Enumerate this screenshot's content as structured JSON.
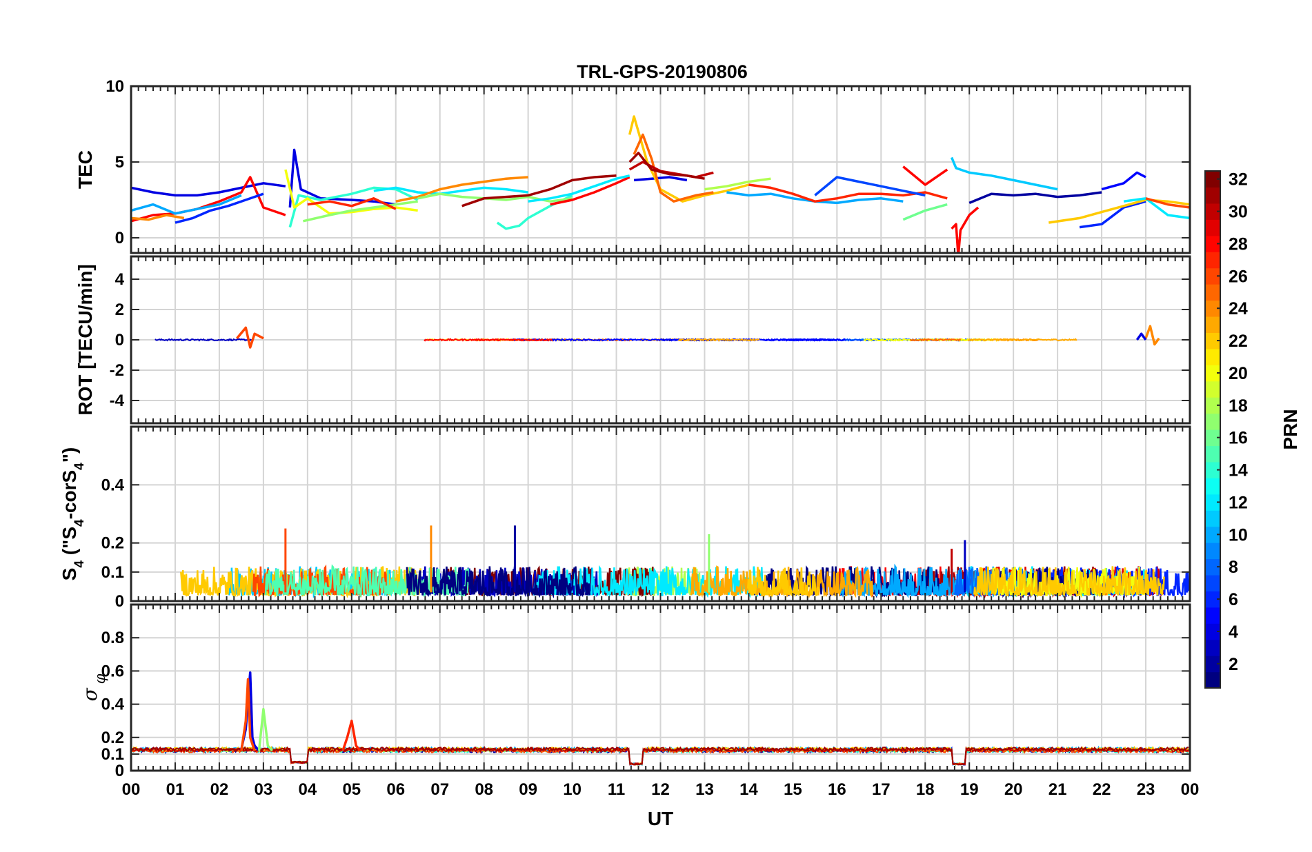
{
  "chart_data": [
    {
      "panel": "tec",
      "type": "line",
      "title": "TRL-GPS-20190806",
      "ylabel": "TEC",
      "xlabel": "",
      "xlim": [
        0,
        24
      ],
      "ylim": [
        -1,
        10
      ],
      "yticks": [
        0,
        5,
        10
      ],
      "grid": true,
      "series": [
        {
          "prn": 4,
          "x": [
            0.0,
            0.5,
            1.0,
            1.5,
            2.0,
            2.5,
            3.0,
            3.5
          ],
          "y": [
            3.3,
            3.0,
            2.8,
            2.8,
            3.0,
            3.3,
            3.6,
            3.4
          ]
        },
        {
          "prn": 28,
          "x": [
            0.0,
            0.5,
            1.0,
            1.5,
            2.0,
            2.5,
            2.7,
            3.0,
            3.5
          ],
          "y": [
            1.1,
            1.5,
            1.6,
            1.9,
            2.4,
            3.0,
            4.0,
            2.0,
            1.5
          ]
        },
        {
          "prn": 24,
          "x": [
            0.0,
            0.4,
            0.8,
            1.2
          ],
          "y": [
            1.3,
            1.2,
            1.5,
            1.3
          ]
        },
        {
          "prn": 10,
          "x": [
            0.0,
            0.5,
            1.0,
            1.5,
            2.0,
            2.5
          ],
          "y": [
            1.8,
            2.2,
            1.6,
            1.9,
            2.2,
            2.8
          ]
        },
        {
          "prn": 6,
          "x": [
            1.0,
            1.4,
            1.8,
            2.2,
            2.6,
            3.0
          ],
          "y": [
            1.0,
            1.3,
            1.8,
            2.1,
            2.5,
            2.9
          ]
        },
        {
          "prn": 4,
          "x": [
            3.6,
            3.7,
            3.85,
            4.3,
            5.0,
            5.5,
            6.0
          ],
          "y": [
            2.0,
            5.8,
            3.2,
            2.6,
            2.5,
            2.4,
            2.2
          ]
        },
        {
          "prn": 14,
          "x": [
            3.6,
            3.8,
            4.3,
            5.0,
            5.5,
            6.0,
            6.5
          ],
          "y": [
            0.7,
            2.8,
            2.5,
            2.9,
            3.3,
            3.2,
            2.5
          ]
        },
        {
          "prn": 20,
          "x": [
            3.5,
            3.7,
            4.0,
            4.5,
            5.0,
            5.5,
            6.0,
            6.5
          ],
          "y": [
            4.5,
            2.0,
            2.6,
            1.6,
            1.7,
            1.9,
            2.0,
            1.8
          ]
        },
        {
          "prn": 17,
          "x": [
            3.9,
            4.5,
            5.0,
            5.5,
            6.0,
            6.5
          ],
          "y": [
            1.1,
            1.5,
            1.8,
            2.0,
            2.2,
            2.4
          ]
        },
        {
          "prn": 27,
          "x": [
            4.0,
            4.5,
            5.0,
            5.5,
            6.0
          ],
          "y": [
            2.2,
            2.4,
            2.1,
            2.6,
            1.9
          ]
        },
        {
          "prn": 12,
          "x": [
            5.5,
            6.0,
            6.5,
            7.0,
            7.5,
            8.0,
            8.5,
            9.0
          ],
          "y": [
            3.1,
            3.3,
            3.0,
            2.9,
            3.1,
            3.3,
            3.2,
            3.0
          ]
        },
        {
          "prn": 24,
          "x": [
            6.0,
            6.5,
            7.0,
            7.5,
            8.0,
            8.5,
            9.0
          ],
          "y": [
            2.4,
            2.7,
            3.2,
            3.5,
            3.7,
            3.9,
            4.0
          ]
        },
        {
          "prn": 14,
          "x": [
            8.3,
            8.5,
            8.8,
            9.0,
            9.5,
            10.0
          ],
          "y": [
            1.0,
            0.6,
            0.8,
            1.3,
            2.1,
            2.8
          ]
        },
        {
          "prn": 17,
          "x": [
            6.5,
            7.0,
            7.5,
            8.0,
            8.5,
            9.0,
            9.5,
            10.0
          ],
          "y": [
            2.6,
            2.9,
            2.7,
            2.6,
            2.5,
            2.7,
            2.4,
            2.6
          ]
        },
        {
          "prn": 31,
          "x": [
            7.5,
            8.0,
            8.5,
            9.0,
            9.5,
            10.0,
            10.5,
            11.0
          ],
          "y": [
            2.1,
            2.6,
            2.7,
            2.8,
            3.2,
            3.8,
            4.0,
            4.1
          ]
        },
        {
          "prn": 28,
          "x": [
            9.5,
            10.0,
            10.5,
            11.0,
            11.3
          ],
          "y": [
            2.2,
            2.5,
            3.0,
            3.6,
            4.0
          ]
        },
        {
          "prn": 12,
          "x": [
            9.0,
            9.5,
            10.0,
            10.5,
            11.0,
            11.3
          ],
          "y": [
            2.4,
            2.6,
            2.9,
            3.4,
            3.9,
            4.1
          ]
        },
        {
          "prn": 4,
          "x": [
            11.4,
            11.8,
            12.2,
            12.6
          ],
          "y": [
            3.8,
            3.9,
            4.0,
            3.8
          ]
        },
        {
          "prn": 22,
          "x": [
            11.3,
            11.4,
            11.7,
            12.0,
            12.5,
            13.0,
            13.5,
            14.0
          ],
          "y": [
            6.8,
            8.0,
            5.0,
            3.2,
            2.4,
            2.8,
            3.1,
            3.5
          ]
        },
        {
          "prn": 25,
          "x": [
            11.4,
            11.6,
            11.8,
            12.0,
            12.3,
            12.8,
            13.2
          ],
          "y": [
            5.5,
            6.8,
            5.2,
            3.0,
            2.4,
            2.8,
            3.0
          ]
        },
        {
          "prn": 30,
          "x": [
            11.3,
            11.6,
            12.0,
            12.4,
            12.8,
            13.2
          ],
          "y": [
            4.5,
            5.0,
            4.4,
            4.2,
            4.0,
            4.3
          ]
        },
        {
          "prn": 31,
          "x": [
            11.3,
            11.5,
            11.8,
            12.2,
            12.6,
            13.0
          ],
          "y": [
            5.0,
            5.6,
            4.5,
            4.2,
            4.1,
            3.9
          ]
        },
        {
          "prn": 18,
          "x": [
            13.0,
            13.5,
            14.0,
            14.5
          ],
          "y": [
            3.2,
            3.4,
            3.7,
            3.9
          ]
        },
        {
          "prn": 10,
          "x": [
            13.5,
            14.0,
            14.5,
            15.0,
            15.5,
            16.0,
            16.5,
            17.0,
            17.5
          ],
          "y": [
            3.0,
            2.8,
            2.9,
            2.6,
            2.4,
            2.3,
            2.5,
            2.6,
            2.4
          ]
        },
        {
          "prn": 27,
          "x": [
            14.0,
            14.5,
            15.0,
            15.5,
            16.0,
            16.5,
            17.0,
            17.5,
            18.0,
            18.5
          ],
          "y": [
            3.5,
            3.3,
            2.9,
            2.4,
            2.6,
            2.9,
            2.9,
            2.8,
            3.0,
            2.6
          ]
        },
        {
          "prn": 7,
          "x": [
            15.5,
            16.0,
            16.5,
            17.0,
            17.5,
            18.0
          ],
          "y": [
            2.8,
            4.0,
            3.7,
            3.4,
            3.1,
            2.8
          ]
        },
        {
          "prn": 28,
          "x": [
            17.5,
            18.0,
            18.5
          ],
          "y": [
            4.7,
            3.5,
            4.5
          ]
        },
        {
          "prn": 16,
          "x": [
            17.5,
            18.0,
            18.5
          ],
          "y": [
            1.2,
            1.8,
            2.2
          ]
        },
        {
          "prn": 28,
          "x": [
            18.6,
            18.7,
            18.75,
            18.8,
            19.0,
            19.2
          ],
          "y": [
            0.6,
            0.9,
            -1.2,
            0.5,
            1.5,
            2.0
          ]
        },
        {
          "prn": 11,
          "x": [
            18.6,
            18.7,
            19.0,
            19.5,
            20.0,
            20.5,
            21.0
          ],
          "y": [
            5.3,
            4.6,
            4.3,
            4.1,
            3.8,
            3.5,
            3.2
          ]
        },
        {
          "prn": 2,
          "x": [
            19.0,
            19.5,
            20.0,
            20.5,
            21.0,
            21.5,
            22.0
          ],
          "y": [
            2.3,
            2.9,
            2.8,
            2.9,
            2.7,
            2.8,
            3.0
          ]
        },
        {
          "prn": 6,
          "x": [
            21.5,
            22.0,
            22.5,
            23.0
          ],
          "y": [
            0.7,
            0.9,
            2.0,
            2.4
          ]
        },
        {
          "prn": 5,
          "x": [
            22.0,
            22.5,
            22.8,
            23.0
          ],
          "y": [
            3.2,
            3.6,
            4.3,
            4.0
          ]
        },
        {
          "prn": 22,
          "x": [
            20.8,
            21.5,
            22.0,
            22.5,
            23.0,
            23.5,
            24.0
          ],
          "y": [
            1.0,
            1.3,
            1.7,
            2.1,
            2.5,
            2.4,
            2.2
          ]
        },
        {
          "prn": 12,
          "x": [
            22.5,
            23.0,
            23.5,
            24.0
          ],
          "y": [
            2.4,
            2.6,
            1.5,
            1.3
          ]
        },
        {
          "prn": 26,
          "x": [
            23.0,
            23.5,
            24.0
          ],
          "y": [
            2.6,
            2.2,
            2.0
          ]
        }
      ]
    },
    {
      "panel": "rot",
      "type": "line",
      "ylabel": "ROT [TECU/min]",
      "xlabel": "",
      "xlim": [
        0,
        24
      ],
      "ylim": [
        -5.5,
        5.5
      ],
      "yticks": [
        -4,
        -2,
        0,
        2,
        4
      ],
      "grid": true,
      "series": [
        {
          "prn": 26,
          "x": [
            2.4,
            2.6,
            2.7,
            2.8,
            3.0
          ],
          "y": [
            0.1,
            0.8,
            -0.5,
            0.4,
            0.1
          ]
        },
        {
          "prn": 24,
          "x": [
            23.0,
            23.1,
            23.2,
            23.3
          ],
          "y": [
            0.1,
            0.9,
            -0.3,
            0.1
          ]
        },
        {
          "prn": 4,
          "x": [
            22.8,
            22.9,
            23.0
          ],
          "y": [
            0.0,
            0.4,
            0.0
          ]
        }
      ]
    },
    {
      "panel": "s4",
      "type": "line",
      "ylabel": "S4 (\"S4-corS4\")",
      "xlabel": "",
      "xlim": [
        0,
        24
      ],
      "ylim": [
        0,
        0.6
      ],
      "yticks": [
        0,
        0.1,
        0.2,
        0.4
      ],
      "grid": true,
      "spikes": [
        {
          "prn": 26,
          "x": 3.5,
          "y": 0.25
        },
        {
          "prn": 24,
          "x": 6.8,
          "y": 0.26
        },
        {
          "prn": 2,
          "x": 8.7,
          "y": 0.26
        },
        {
          "prn": 17,
          "x": 13.1,
          "y": 0.23
        },
        {
          "prn": 3,
          "x": 18.9,
          "y": 0.21
        },
        {
          "prn": 30,
          "x": 18.6,
          "y": 0.18
        }
      ]
    },
    {
      "panel": "sigma",
      "type": "line",
      "ylabel": "σ_φ",
      "xlabel": "UT",
      "xlim": [
        0,
        24
      ],
      "ylim": [
        0,
        1
      ],
      "yticks": [
        0,
        0.1,
        0.2,
        0.4,
        0.6,
        0.8
      ],
      "grid": true,
      "xtick_labels": [
        "00",
        "01",
        "02",
        "03",
        "04",
        "05",
        "06",
        "07",
        "08",
        "09",
        "10",
        "11",
        "12",
        "13",
        "14",
        "15",
        "16",
        "17",
        "18",
        "19",
        "20",
        "21",
        "22",
        "23",
        "00"
      ],
      "series": [
        {
          "prn": 4,
          "x": [
            2.5,
            2.6,
            2.7,
            2.75,
            2.8,
            2.9
          ],
          "y": [
            0.13,
            0.25,
            0.59,
            0.2,
            0.15,
            0.12
          ]
        },
        {
          "prn": 26,
          "x": [
            2.5,
            2.6,
            2.65,
            2.7,
            2.8
          ],
          "y": [
            0.12,
            0.3,
            0.55,
            0.2,
            0.12
          ]
        },
        {
          "prn": 17,
          "x": [
            2.9,
            3.0,
            3.1,
            3.2
          ],
          "y": [
            0.12,
            0.37,
            0.15,
            0.12
          ]
        },
        {
          "prn": 27,
          "x": [
            4.8,
            4.9,
            5.0,
            5.1,
            5.2
          ],
          "y": [
            0.12,
            0.2,
            0.3,
            0.15,
            0.12
          ]
        }
      ],
      "dips": [
        {
          "x": [
            3.6,
            4.0
          ],
          "y": 0.05
        },
        {
          "x": [
            11.3,
            11.6
          ],
          "y": 0.04
        },
        {
          "x": [
            18.6,
            18.9
          ],
          "y": 0.04
        }
      ]
    }
  ],
  "colorbar": {
    "label": "PRN",
    "min": 1,
    "max": 32,
    "ticks": [
      "2",
      "4",
      "6",
      "8",
      "10",
      "12",
      "14",
      "16",
      "18",
      "20",
      "22",
      "24",
      "26",
      "28",
      "30",
      "32"
    ]
  }
}
